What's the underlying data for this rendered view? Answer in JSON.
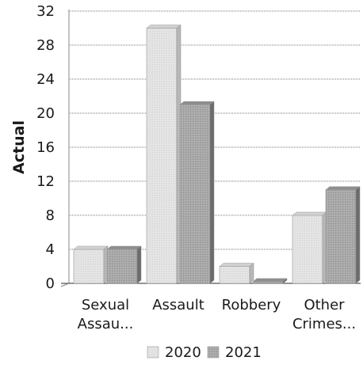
{
  "chart_data": {
    "type": "bar",
    "title": "",
    "xlabel": "",
    "ylabel": "Actual",
    "ylim": [
      0,
      32
    ],
    "yticks": [
      0,
      4,
      8,
      12,
      16,
      20,
      24,
      28,
      32
    ],
    "grid": true,
    "legend_position": "bottom",
    "three_d": true,
    "categories": [
      [
        "Sexual",
        "Assau..."
      ],
      [
        "Assault"
      ],
      [
        "Robbery"
      ],
      [
        "Other",
        "Crimes..."
      ]
    ],
    "series": [
      {
        "name": "2020",
        "values": [
          4,
          30,
          2,
          8
        ],
        "color": "#e4e4e4"
      },
      {
        "name": "2021",
        "values": [
          4,
          21,
          0.2,
          11
        ],
        "color": "#a8a8a8"
      }
    ]
  }
}
